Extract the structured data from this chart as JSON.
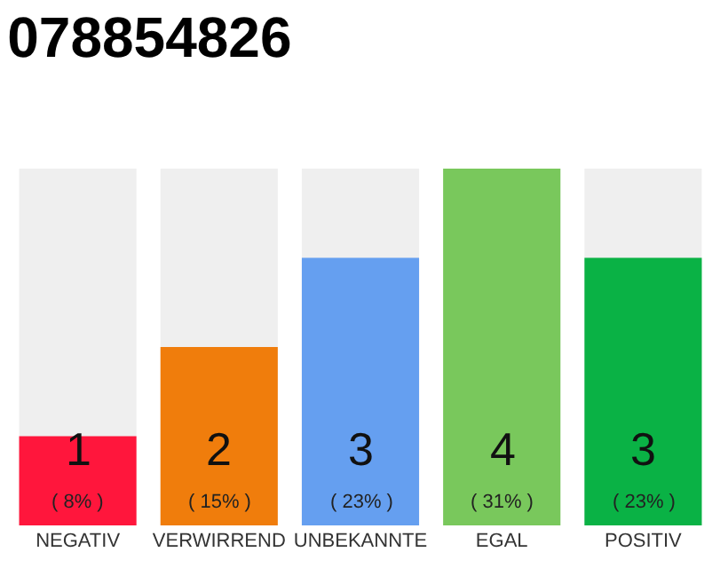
{
  "chart_data": {
    "type": "bar",
    "title": "078854826",
    "categories": [
      "NEGATIV",
      "VERWIRREND",
      "UNBEKANNTE",
      "EGAL",
      "POSITIV"
    ],
    "values": [
      1,
      2,
      3,
      4,
      3
    ],
    "colors": [
      "#ff163c",
      "#f07d0c",
      "#659ff0",
      "#79c85c",
      "#0ab245"
    ],
    "ylim": [
      0,
      4
    ],
    "tick_labels": "x",
    "grid": false,
    "legend": false,
    "data_labels": true,
    "annotations": [
      "( 8% )",
      "( 15% )",
      "( 23% )",
      "( 31% )",
      "( 23% )"
    ]
  }
}
